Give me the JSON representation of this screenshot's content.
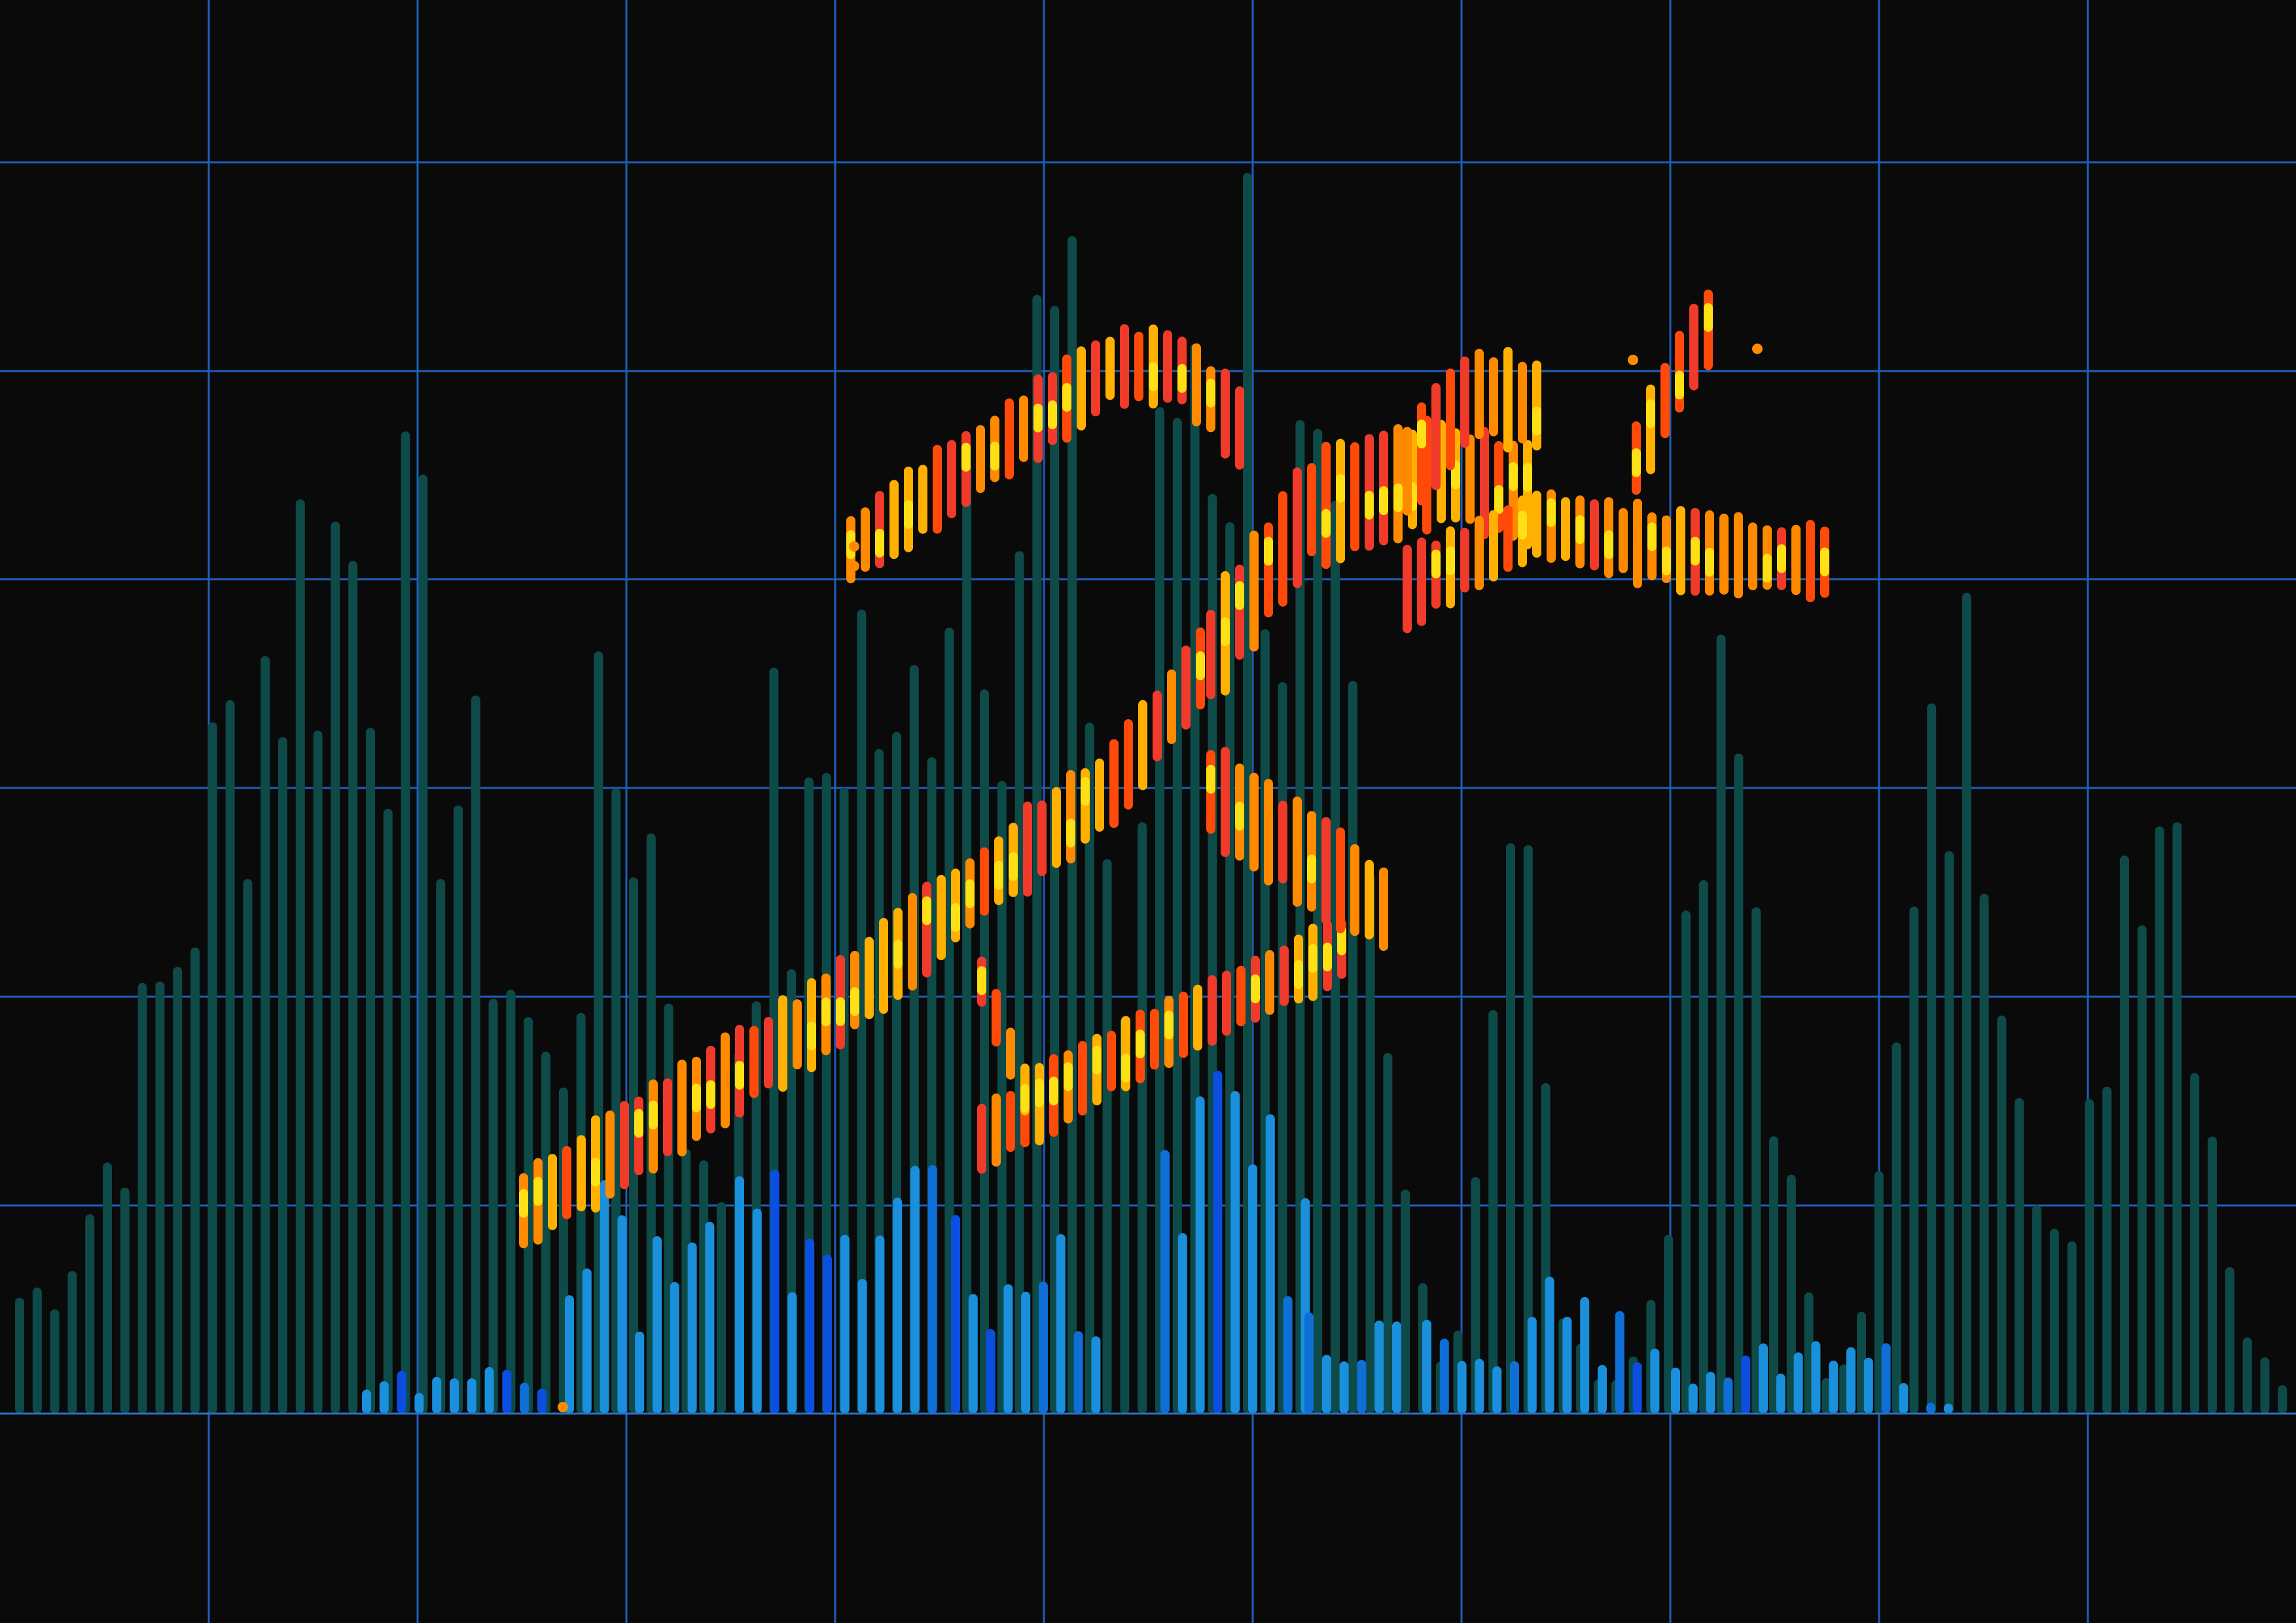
{
  "colors": {
    "background": "#0a0a0a",
    "grid": "#1e5fb8",
    "baseline": "#2a70c8",
    "eq_dim": "#0e4a48",
    "eq_blue": "#1a8fdc",
    "eq_blue_alt": "#0e6fd6",
    "eq_deep_blue": "#0b4fe0",
    "figure_orange": "#ff8a00",
    "figure_red_orange": "#ff4a0a",
    "figure_red": "#f03a2a",
    "figure_yellow": "#ffe014",
    "figure_amber": "#ffb000"
  },
  "illustration": {
    "subject": "running-figure",
    "style": "audio-equalizer-bars"
  }
}
